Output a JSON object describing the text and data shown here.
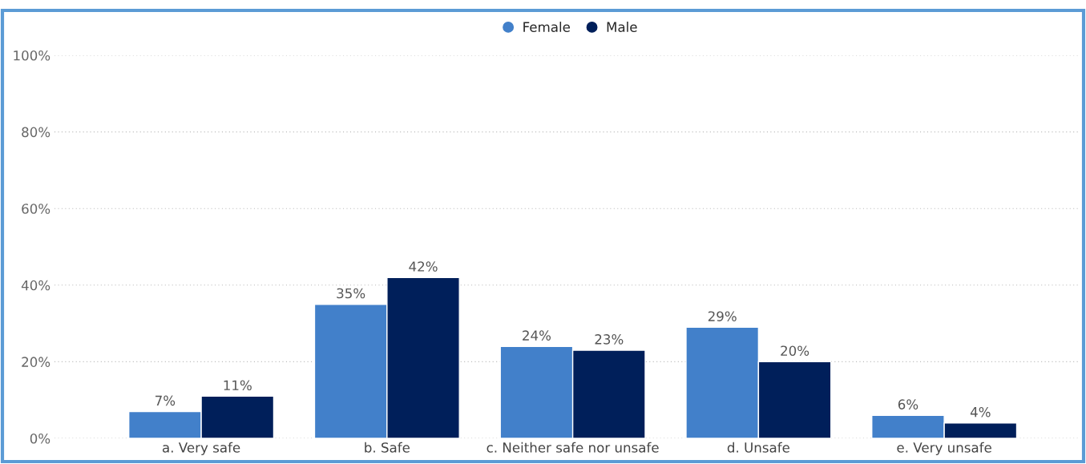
{
  "chart_data": {
    "type": "bar",
    "categories": [
      "a. Very safe",
      "b. Safe",
      "c. Neither safe nor unsafe",
      "d. Unsafe",
      "e. Very unsafe"
    ],
    "series": [
      {
        "name": "Female",
        "color": "#4280ca",
        "values": [
          7,
          35,
          24,
          29,
          6
        ],
        "value_labels": [
          "7%",
          "35%",
          "24%",
          "29%",
          "6%"
        ]
      },
      {
        "name": "Male",
        "color": "#001f5a",
        "values": [
          11,
          42,
          23,
          20,
          4
        ],
        "value_labels": [
          "11%",
          "42%",
          "23%",
          "20%",
          "4%"
        ]
      }
    ],
    "ylim": [
      0,
      100
    ],
    "yticks": [
      {
        "value": 0,
        "label": "0%"
      },
      {
        "value": 20,
        "label": "20%"
      },
      {
        "value": 40,
        "label": "40%"
      },
      {
        "value": 60,
        "label": "60%"
      },
      {
        "value": 80,
        "label": "80%"
      },
      {
        "value": 100,
        "label": "100%"
      }
    ],
    "grid": "y",
    "legend": "top",
    "marker": "circle"
  }
}
